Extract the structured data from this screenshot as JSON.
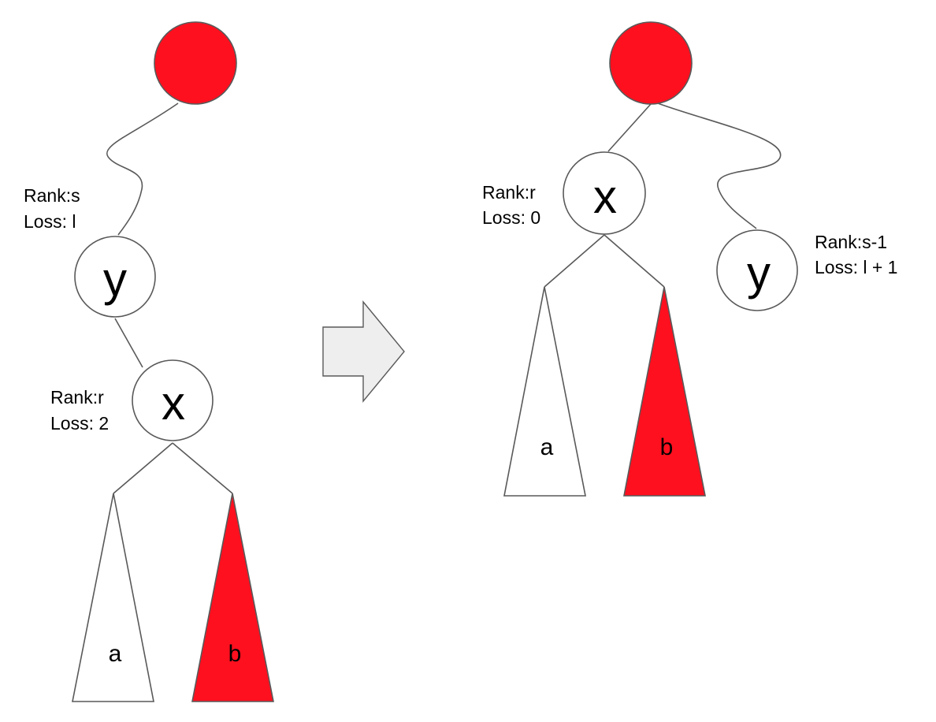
{
  "colors": {
    "red_fill": "#ff101f",
    "white_fill": "#ffffff",
    "stroke": "#595959",
    "arrow_fill": "#eeeeee"
  },
  "before": {
    "node_y": {
      "letter": "y",
      "rank": "Rank:s",
      "loss": "Loss: l"
    },
    "node_x": {
      "letter": "x",
      "rank": "Rank:r",
      "loss": "Loss: 2"
    },
    "subtree_a": "a",
    "subtree_b": "b"
  },
  "after": {
    "node_x": {
      "letter": "x",
      "rank": "Rank:r",
      "loss": "Loss: 0"
    },
    "node_y": {
      "letter": "y",
      "rank": "Rank:s-1",
      "loss": "Loss: l + 1"
    },
    "subtree_a": "a",
    "subtree_b": "b"
  },
  "transition_icon": "right-arrow-icon"
}
